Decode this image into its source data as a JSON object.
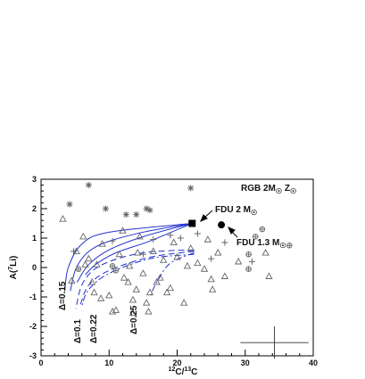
{
  "chart_data": {
    "type": "scatter",
    "title": "",
    "xlabel": "12C/13C",
    "ylabel": "A(7Li)",
    "xlim": [
      0,
      40
    ],
    "ylim": [
      -3,
      3
    ],
    "xticks": [
      0,
      10,
      20,
      30,
      40
    ],
    "yticks": [
      -3,
      -2,
      -1,
      0,
      1,
      2,
      3
    ],
    "grid": false,
    "annotations": {
      "corner": "RGB 2M",
      "fdu2": "FDU 2 M",
      "fdu13": "FDU 1.3 M",
      "d015": "Δ=0.15",
      "d01": "Δ=0.1",
      "d022": "Δ=0.22",
      "d025": "Δ=0.25"
    },
    "special_points": [
      {
        "name": "FDU 2 M",
        "marker": "filled-square",
        "x": 22.2,
        "y": 1.5
      },
      {
        "name": "FDU 1.3 M",
        "marker": "filled-circle",
        "x": 26.5,
        "y": 1.45
      }
    ],
    "error_bar": {
      "x": 34.3,
      "y": -2.55,
      "xerr": 5.0,
      "yerr": 0.55
    },
    "series": [
      {
        "marker": "triangle",
        "points": [
          [
            3.2,
            1.65
          ],
          [
            4.5,
            -0.45
          ],
          [
            5.2,
            0.55
          ],
          [
            6.2,
            1.05
          ],
          [
            6.5,
            0.1
          ],
          [
            7.0,
            0.3
          ],
          [
            7.5,
            -0.5
          ],
          [
            7.8,
            -0.85
          ],
          [
            8.2,
            0.1
          ],
          [
            8.8,
            -1.05
          ],
          [
            9.0,
            0.8
          ],
          [
            10.0,
            -0.95
          ],
          [
            10.5,
            -1.5
          ],
          [
            11.0,
            -1.45
          ],
          [
            11.5,
            0.45
          ],
          [
            12.0,
            1.25
          ],
          [
            12.2,
            -0.35
          ],
          [
            12.8,
            -0.5
          ],
          [
            13.0,
            0.05
          ],
          [
            13.5,
            -1.1
          ],
          [
            13.5,
            -1.55
          ],
          [
            14.0,
            -0.75
          ],
          [
            14.2,
            0.5
          ],
          [
            14.5,
            1.05
          ],
          [
            15.0,
            -0.2
          ],
          [
            15.5,
            -1.2
          ],
          [
            15.8,
            -1.5
          ],
          [
            16.0,
            -0.85
          ],
          [
            16.5,
            0.55
          ],
          [
            17.0,
            -0.5
          ],
          [
            17.5,
            -0.35
          ],
          [
            18.0,
            0.25
          ],
          [
            18.5,
            -0.85
          ],
          [
            19.0,
            -0.7
          ],
          [
            19.5,
            0.85
          ],
          [
            20.0,
            0.35
          ],
          [
            21.0,
            -1.2
          ],
          [
            21.5,
            0.05
          ],
          [
            22.0,
            0.65
          ],
          [
            23.0,
            0.15
          ],
          [
            24.0,
            -0.05
          ],
          [
            24.5,
            0.95
          ],
          [
            25.0,
            -0.4
          ],
          [
            25.2,
            -0.75
          ],
          [
            26.0,
            0.5
          ],
          [
            27.0,
            -0.3
          ],
          [
            29.0,
            0.2
          ],
          [
            33.0,
            0.5
          ],
          [
            33.5,
            -0.3
          ]
        ]
      },
      {
        "marker": "asterisk",
        "points": [
          [
            4.2,
            2.15
          ],
          [
            7.0,
            2.8
          ],
          [
            9.5,
            2.0
          ],
          [
            12.5,
            1.8
          ],
          [
            14.0,
            1.8
          ],
          [
            15.5,
            2.0
          ],
          [
            16.0,
            1.95
          ],
          [
            22.0,
            2.7
          ]
        ]
      },
      {
        "marker": "plus",
        "points": [
          [
            4.8,
            0.55
          ],
          [
            10.5,
            0.9
          ],
          [
            15.0,
            0.45
          ],
          [
            16.5,
            0.95
          ],
          [
            19.0,
            1.1
          ],
          [
            20.5,
            1.0
          ],
          [
            23.0,
            1.15
          ],
          [
            25.0,
            0.3
          ],
          [
            27.0,
            0.85
          ],
          [
            31.0,
            0.2
          ]
        ]
      },
      {
        "marker": "circle-plus",
        "points": [
          [
            5.5,
            -0.05
          ],
          [
            10.5,
            0.05
          ],
          [
            11.0,
            -0.1
          ],
          [
            30.5,
            -0.05
          ],
          [
            30.5,
            0.45
          ],
          [
            31.5,
            1.05
          ],
          [
            32.5,
            1.3
          ],
          [
            36.5,
            0.75
          ]
        ]
      }
    ],
    "curves": [
      {
        "name": "",
        "style": "solid",
        "points": [
          [
            22.2,
            1.5
          ],
          [
            10,
            1.2
          ],
          [
            6,
            0.8
          ],
          [
            4,
            0
          ],
          [
            3.5,
            -0.8
          ]
        ]
      },
      {
        "name": "",
        "style": "solid",
        "points": [
          [
            22.2,
            1.5
          ],
          [
            14,
            1.15
          ],
          [
            8,
            0.7
          ],
          [
            5.3,
            0.05
          ],
          [
            4.3,
            -0.8
          ]
        ]
      },
      {
        "name": "",
        "style": "solid",
        "points": [
          [
            22.2,
            1.5
          ],
          [
            15,
            1.05
          ],
          [
            10,
            0.6
          ],
          [
            7,
            0.1
          ],
          [
            5.3,
            -0.5
          ]
        ]
      },
      {
        "name": "",
        "style": "solid",
        "points": [
          [
            22.2,
            1.5
          ],
          [
            16,
            0.9
          ],
          [
            11,
            0.5
          ],
          [
            8,
            0.1
          ],
          [
            6.5,
            -0.25
          ]
        ]
      },
      {
        "name": "",
        "style": "dashed",
        "points": [
          [
            22.5,
            0.6
          ],
          [
            15,
            0.5
          ],
          [
            9,
            0.1
          ],
          [
            6.2,
            -0.5
          ],
          [
            5.1,
            -1.4
          ]
        ]
      },
      {
        "name": "",
        "style": "dashed",
        "points": [
          [
            22.5,
            0.55
          ],
          [
            16,
            0.35
          ],
          [
            10,
            -0.1
          ],
          [
            7,
            -0.6
          ],
          [
            5.8,
            -1.25
          ]
        ]
      },
      {
        "name": "",
        "style": "dashdot",
        "points": [
          [
            22.5,
            0.45
          ],
          [
            16,
            0.3
          ],
          [
            10,
            -0.2
          ],
          [
            7,
            -0.75
          ],
          [
            6,
            -1.3
          ]
        ]
      },
      {
        "name": "",
        "style": "dashdot",
        "points": [
          [
            22.5,
            0.5
          ],
          [
            19,
            0.15
          ],
          [
            17,
            -0.5
          ],
          [
            16,
            -1.0
          ]
        ]
      }
    ],
    "colors": {
      "curves": "#2233cc",
      "markers": "#666666",
      "axes": "#000000",
      "arrow": "#000000"
    }
  }
}
